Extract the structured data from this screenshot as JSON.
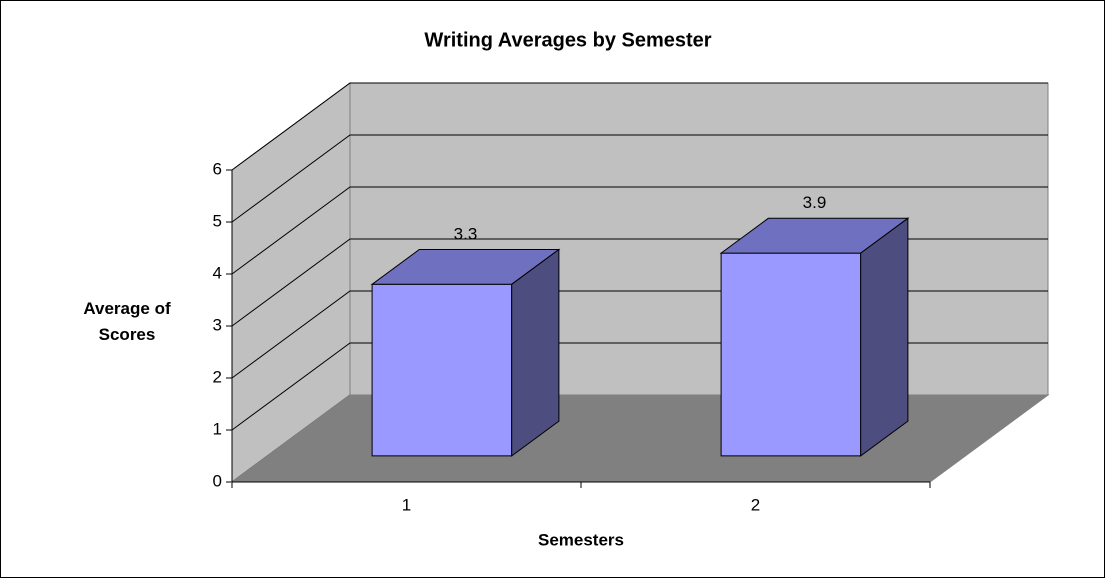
{
  "chart_data": {
    "type": "bar3d",
    "title": "Writing Averages by Semester",
    "x_label": "Semesters",
    "y_label": "Average of Scores",
    "categories": [
      "1",
      "2"
    ],
    "values": [
      3.3,
      3.9
    ],
    "color": "#9999ff",
    "ylim": [
      0,
      6
    ],
    "yticks": [
      0,
      1,
      2,
      3,
      4,
      5,
      6
    ],
    "grid": true
  }
}
